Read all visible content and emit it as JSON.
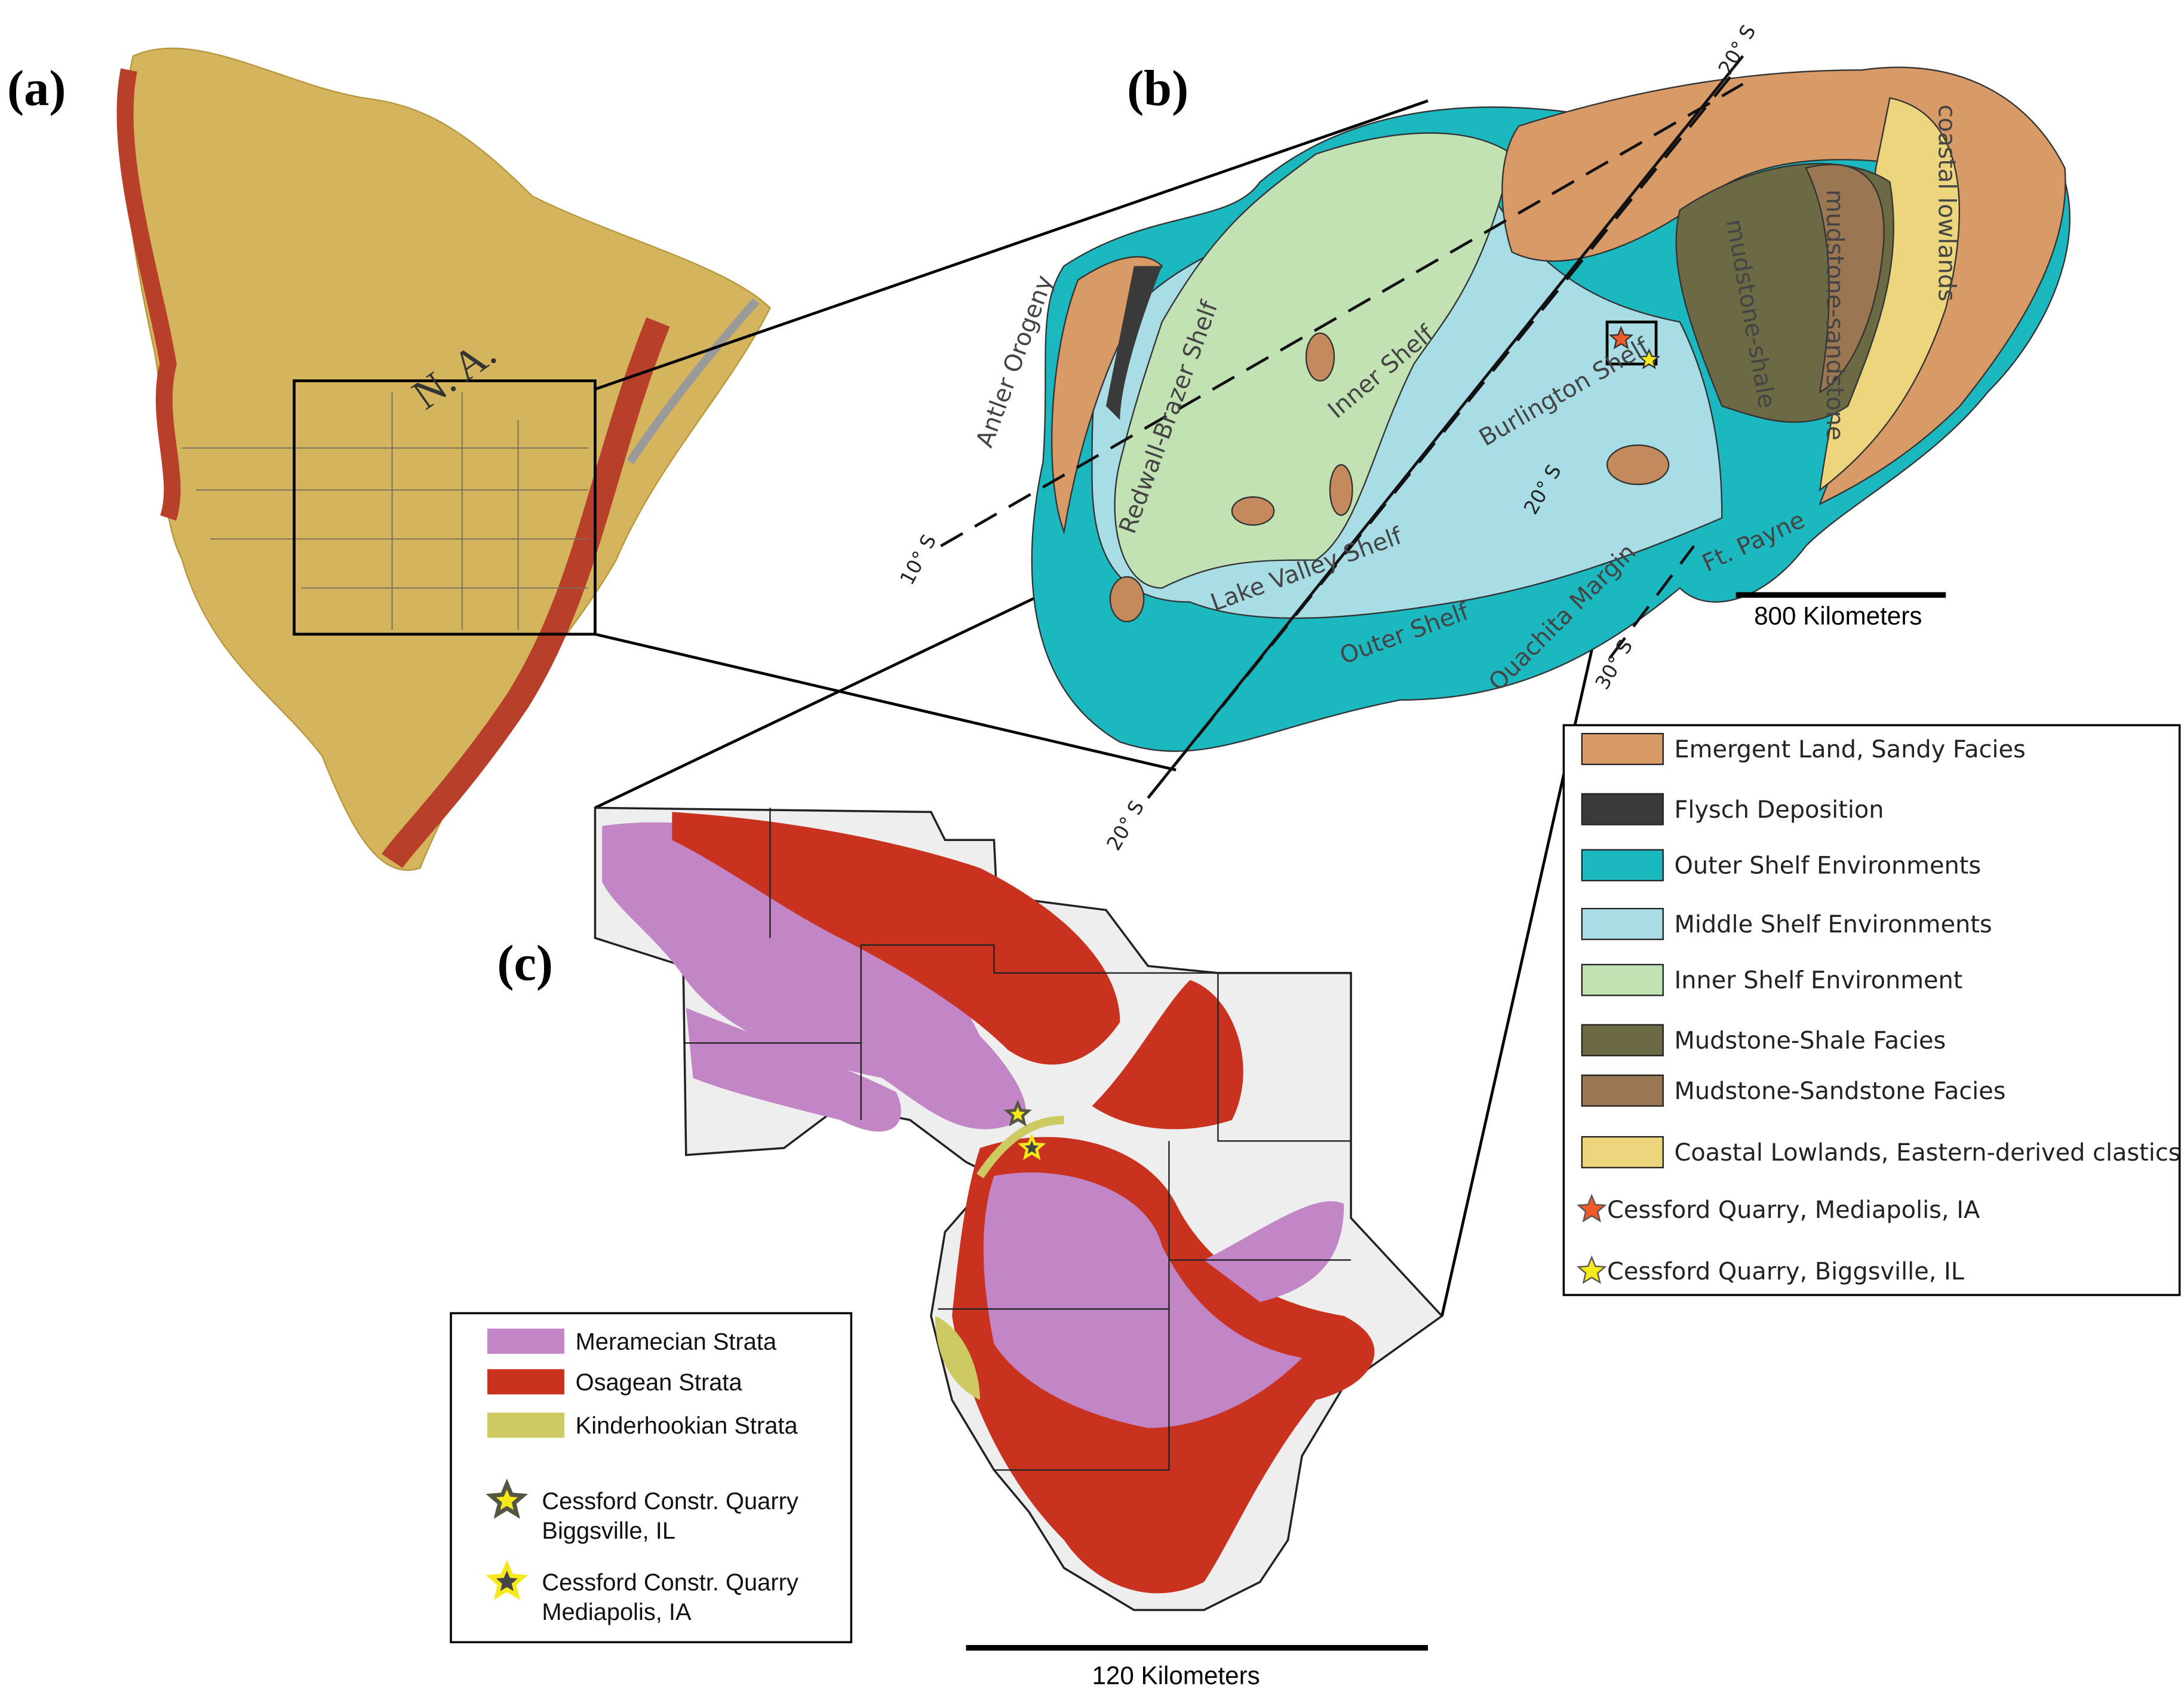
{
  "panels": {
    "a": {
      "label": "(a)",
      "region_label": "N. A."
    },
    "b": {
      "label": "(b)",
      "map_labels": [
        "Antler Orogeny",
        "Redwall-Brazer Shelf",
        "Inner Shelf",
        "Burlington Shelf",
        "Lake Valley Shelf",
        "Outer Shelf",
        "Ouachita Margin",
        "Ft. Payne",
        "mudstone-shale",
        "mudstone-sandstone",
        "coastal lowlands"
      ],
      "latitudes": [
        "10° S",
        "20° S",
        "20° S",
        "20° S",
        "30° S"
      ],
      "scale_bar": "800 Kilometers",
      "legend": [
        {
          "label": "Emergent Land, Sandy Facies",
          "color": "#d89a66"
        },
        {
          "label": "Flysch Deposition",
          "color": "#3a3a3a"
        },
        {
          "label": "Outer Shelf Environments",
          "color": "#1bb8c0"
        },
        {
          "label": "Middle Shelf Environments",
          "color": "#a9dde6"
        },
        {
          "label": "Inner Shelf Environment",
          "color": "#c3e2b4"
        },
        {
          "label": "Mudstone-Shale Facies",
          "color": "#6b6a45"
        },
        {
          "label": "Mudstone-Sandstone Facies",
          "color": "#9b7653"
        },
        {
          "label": "Coastal Lowlands, Eastern-derived clastics",
          "color": "#ecd57d"
        },
        {
          "label": "Cessford Quarry, Mediapolis, IA",
          "color": "#f05a28",
          "symbol": "star"
        },
        {
          "label": "Cessford Quarry, Biggsville, IL",
          "color": "#f7e81c",
          "symbol": "star"
        }
      ]
    },
    "c": {
      "label": "(c)",
      "scale_bar": "120 Kilometers",
      "legend": [
        {
          "label": "Meramecian Strata",
          "color": "#c285c6"
        },
        {
          "label": "Osagean Strata",
          "color": "#c8321e"
        },
        {
          "label": "Kinderhookian Strata",
          "color": "#cdca62"
        },
        {
          "lines": [
            "Cessford Constr. Quarry",
            "Biggsville, IL"
          ],
          "color": "#f7e81c",
          "outline": "#555544",
          "symbol": "star"
        },
        {
          "lines": [
            "Cessford Constr. Quarry",
            "Mediapolis, IA"
          ],
          "color": "#444444",
          "outline": "#f7e81c",
          "symbol": "star"
        }
      ]
    }
  }
}
